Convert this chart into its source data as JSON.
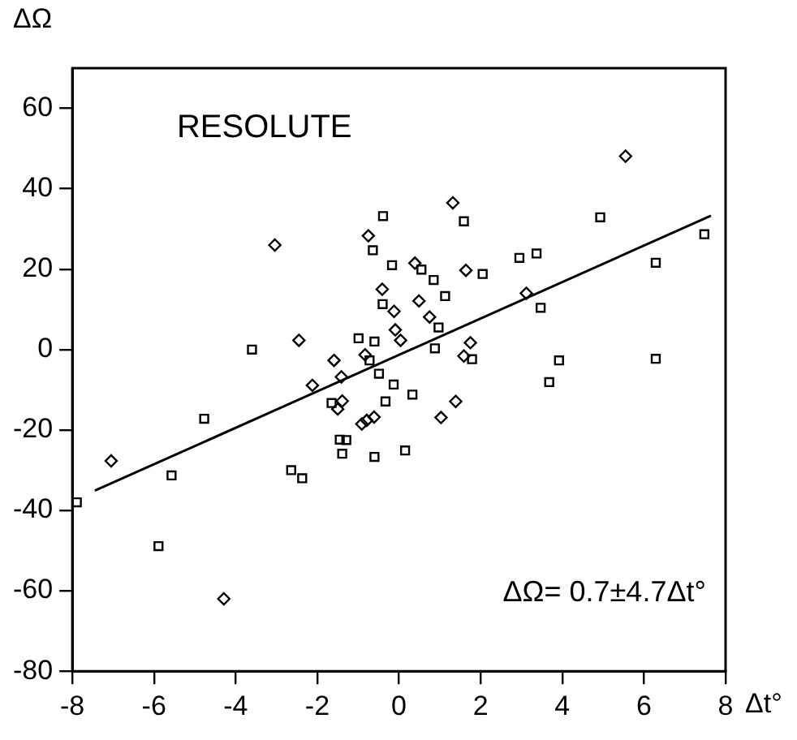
{
  "chart_data": {
    "type": "scatter",
    "xlabel": "Δt°",
    "ylabel": "ΔΩ",
    "annotations": [
      "RESOLUTE",
      "ΔΩ= 0.7±4.7Δt°"
    ],
    "xlim": [
      -8,
      8
    ],
    "ylim": [
      -80,
      70
    ],
    "xticks": [
      -8,
      -6,
      -4,
      -2,
      0,
      2,
      4,
      6,
      8
    ],
    "yticks": [
      -80,
      -60,
      -40,
      -20,
      0,
      20,
      40,
      60
    ],
    "grid": false,
    "legend": false,
    "series": [
      {
        "type": "scatter",
        "marker": "square",
        "color": "#000000",
        "x": [
          -0.39,
          -0.64,
          -0.17,
          -0.4,
          -3.6,
          -0.99,
          -0.6,
          -0.72,
          -0.49,
          -0.13,
          -1.65,
          -0.33,
          -1.45,
          -1.29,
          -1.39,
          -0.6,
          0.15,
          -4.77,
          -5.57,
          -2.64,
          -2.37,
          -7.89,
          -5.89,
          1.59,
          4.93,
          7.48,
          2.95,
          3.37,
          6.29,
          0.55,
          0.85,
          2.05,
          1.13,
          0.97,
          3.47,
          0.88,
          1.79,
          3.92,
          6.29,
          0.33,
          3.68
        ],
        "values": [
          33.2,
          24.7,
          21,
          11.3,
          0,
          2.8,
          2,
          -2.7,
          -6,
          -8.7,
          -13.3,
          -12.9,
          -22.4,
          -22.5,
          -25.9,
          -26.7,
          -25.1,
          -17.2,
          -31.3,
          -30,
          -32,
          -38,
          -48.9,
          31.9,
          32.9,
          28.7,
          22.8,
          23.9,
          21.6,
          19.9,
          17.3,
          18.8,
          13.3,
          5.5,
          10.4,
          0.3,
          -2.4,
          -2.7,
          -2.3,
          -11.2,
          -8.1
        ]
      },
      {
        "type": "scatter",
        "marker": "diamond",
        "color": "#000000",
        "x": [
          -0.75,
          -3.04,
          -0.41,
          -0.12,
          -0.09,
          0.04,
          -2.45,
          -1.59,
          -0.83,
          -1.41,
          -2.12,
          -1.39,
          -1.5,
          -0.91,
          -0.79,
          -0.61,
          -7.05,
          -4.29,
          5.55,
          1.32,
          0.39,
          1.64,
          0.49,
          0.75,
          3.12,
          1.75,
          1.59,
          1.39,
          1.03
        ],
        "values": [
          28.3,
          26,
          15,
          9.5,
          4.9,
          2.3,
          2.3,
          -2.7,
          -1.3,
          -6.8,
          -8.9,
          -12.8,
          -14.8,
          -18.5,
          -17.6,
          -16.8,
          -27.7,
          -62,
          48.1,
          36.5,
          21.5,
          19.7,
          12.1,
          8.1,
          14,
          1.7,
          -1.6,
          -12.9,
          -16.9
        ]
      },
      {
        "type": "line",
        "marker": "none",
        "line_style": "solid",
        "color": "#000000",
        "x": [
          -7.45,
          7.64
        ],
        "values": [
          -35.1,
          33.3
        ]
      }
    ]
  }
}
